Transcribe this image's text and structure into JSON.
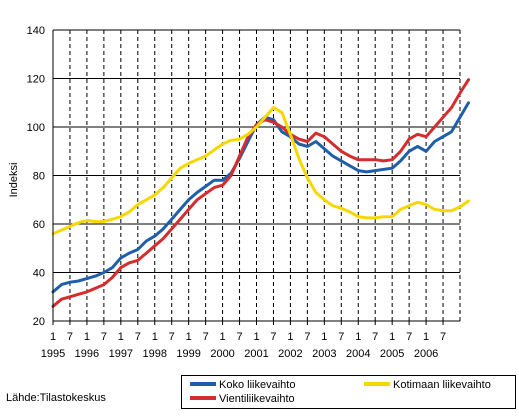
{
  "chart_data": {
    "type": "line",
    "ylabel": "Indeksi",
    "ylim": [
      20,
      140
    ],
    "yticks": [
      20,
      40,
      60,
      80,
      100,
      120,
      140
    ],
    "x_start": 1995.0,
    "x_end": 2006.6667,
    "month_tick_labels": [
      "1",
      "7",
      "1",
      "7",
      "1",
      "7",
      "1",
      "7",
      "1",
      "7",
      "1",
      "7",
      "1",
      "7",
      "1",
      "7",
      "1",
      "7",
      "1",
      "7",
      "1",
      "7",
      "1",
      "7"
    ],
    "year_labels": [
      "1995",
      "1996",
      "1997",
      "1998",
      "1999",
      "2000",
      "2001",
      "2002",
      "2003",
      "2004",
      "2005",
      "2006"
    ],
    "grid": true,
    "source": "Lähde:Tilastokeskus",
    "series": [
      {
        "name": "Koko liikevaihto",
        "color": "#1f5ea8",
        "points": [
          [
            1995.0,
            32
          ],
          [
            1995.25,
            35
          ],
          [
            1995.5,
            36
          ],
          [
            1995.75,
            36.5
          ],
          [
            1996.0,
            37.5
          ],
          [
            1996.25,
            38.5
          ],
          [
            1996.5,
            40
          ],
          [
            1996.75,
            42
          ],
          [
            1997.0,
            46
          ],
          [
            1997.25,
            48
          ],
          [
            1997.5,
            49.5
          ],
          [
            1997.75,
            53
          ],
          [
            1998.0,
            55
          ],
          [
            1998.25,
            58
          ],
          [
            1998.5,
            62
          ],
          [
            1998.75,
            66
          ],
          [
            1999.0,
            70
          ],
          [
            1999.25,
            73
          ],
          [
            1999.5,
            75.5
          ],
          [
            1999.75,
            78
          ],
          [
            2000.0,
            78
          ],
          [
            2000.25,
            81
          ],
          [
            2000.5,
            87
          ],
          [
            2000.75,
            94
          ],
          [
            2001.0,
            101
          ],
          [
            2001.25,
            104
          ],
          [
            2001.5,
            103
          ],
          [
            2001.75,
            98
          ],
          [
            2002.0,
            96
          ],
          [
            2002.25,
            93
          ],
          [
            2002.5,
            92
          ],
          [
            2002.75,
            94
          ],
          [
            2003.0,
            91
          ],
          [
            2003.25,
            88
          ],
          [
            2003.5,
            86
          ],
          [
            2003.75,
            84
          ],
          [
            2004.0,
            82
          ],
          [
            2004.25,
            81.5
          ],
          [
            2004.5,
            82
          ],
          [
            2004.75,
            82.5
          ],
          [
            2005.0,
            83
          ],
          [
            2005.25,
            86
          ],
          [
            2005.5,
            90
          ],
          [
            2005.75,
            92
          ],
          [
            2006.0,
            90
          ],
          [
            2006.25,
            94
          ],
          [
            2006.5,
            96
          ],
          [
            2006.75,
            98
          ],
          [
            2007.0,
            104
          ],
          [
            2007.25,
            110
          ]
        ]
      },
      {
        "name": "Vientiliikevaihto",
        "color": "#d42d2d",
        "points": [
          [
            1995.0,
            26
          ],
          [
            1995.25,
            29
          ],
          [
            1995.5,
            30
          ],
          [
            1995.75,
            31
          ],
          [
            1996.0,
            32
          ],
          [
            1996.25,
            33.5
          ],
          [
            1996.5,
            35
          ],
          [
            1996.75,
            38
          ],
          [
            1997.0,
            42
          ],
          [
            1997.25,
            44
          ],
          [
            1997.5,
            45
          ],
          [
            1997.75,
            48
          ],
          [
            1998.0,
            51
          ],
          [
            1998.25,
            54
          ],
          [
            1998.5,
            58
          ],
          [
            1998.75,
            62
          ],
          [
            1999.0,
            66
          ],
          [
            1999.25,
            70
          ],
          [
            1999.5,
            72.5
          ],
          [
            1999.75,
            75
          ],
          [
            2000.0,
            76
          ],
          [
            2000.25,
            80
          ],
          [
            2000.5,
            88
          ],
          [
            2000.75,
            96
          ],
          [
            2001.0,
            101
          ],
          [
            2001.25,
            103
          ],
          [
            2001.5,
            102
          ],
          [
            2001.75,
            100
          ],
          [
            2002.0,
            97
          ],
          [
            2002.25,
            95
          ],
          [
            2002.5,
            94
          ],
          [
            2002.75,
            97.5
          ],
          [
            2003.0,
            96
          ],
          [
            2003.25,
            93
          ],
          [
            2003.5,
            90
          ],
          [
            2003.75,
            88
          ],
          [
            2004.0,
            86.5
          ],
          [
            2004.25,
            86.5
          ],
          [
            2004.5,
            86.5
          ],
          [
            2004.75,
            86
          ],
          [
            2005.0,
            86.5
          ],
          [
            2005.25,
            90
          ],
          [
            2005.5,
            95
          ],
          [
            2005.75,
            97
          ],
          [
            2006.0,
            96
          ],
          [
            2006.25,
            100
          ],
          [
            2006.5,
            104
          ],
          [
            2006.75,
            108
          ],
          [
            2007.0,
            114
          ],
          [
            2007.25,
            119.5
          ]
        ]
      },
      {
        "name": "Kotimaan liikevaihto",
        "color": "#f5d800",
        "points": [
          [
            1995.0,
            56
          ],
          [
            1995.25,
            57.5
          ],
          [
            1995.5,
            59
          ],
          [
            1995.75,
            60.5
          ],
          [
            1996.0,
            61.5
          ],
          [
            1996.25,
            61
          ],
          [
            1996.5,
            61
          ],
          [
            1996.75,
            62
          ],
          [
            1997.0,
            63
          ],
          [
            1997.25,
            65
          ],
          [
            1997.5,
            68
          ],
          [
            1997.75,
            70
          ],
          [
            1998.0,
            72
          ],
          [
            1998.25,
            75
          ],
          [
            1998.5,
            79
          ],
          [
            1998.75,
            83
          ],
          [
            1999.0,
            85
          ],
          [
            1999.25,
            86.5
          ],
          [
            1999.5,
            88
          ],
          [
            1999.75,
            90.5
          ],
          [
            2000.0,
            93
          ],
          [
            2000.25,
            94.5
          ],
          [
            2000.5,
            95
          ],
          [
            2000.75,
            97
          ],
          [
            2001.0,
            100
          ],
          [
            2001.25,
            104
          ],
          [
            2001.5,
            108
          ],
          [
            2001.75,
            106
          ],
          [
            2002.0,
            97
          ],
          [
            2002.25,
            87
          ],
          [
            2002.5,
            79
          ],
          [
            2002.75,
            73
          ],
          [
            2003.0,
            70
          ],
          [
            2003.25,
            67.5
          ],
          [
            2003.5,
            66.5
          ],
          [
            2003.75,
            65
          ],
          [
            2004.0,
            63
          ],
          [
            2004.25,
            62.5
          ],
          [
            2004.5,
            62.5
          ],
          [
            2004.75,
            63
          ],
          [
            2005.0,
            63
          ],
          [
            2005.25,
            66
          ],
          [
            2005.5,
            67.5
          ],
          [
            2005.75,
            69
          ],
          [
            2006.0,
            68
          ],
          [
            2006.25,
            66
          ],
          [
            2006.5,
            65.5
          ],
          [
            2006.75,
            65.5
          ],
          [
            2007.0,
            67
          ],
          [
            2007.25,
            69.5
          ]
        ]
      }
    ]
  }
}
